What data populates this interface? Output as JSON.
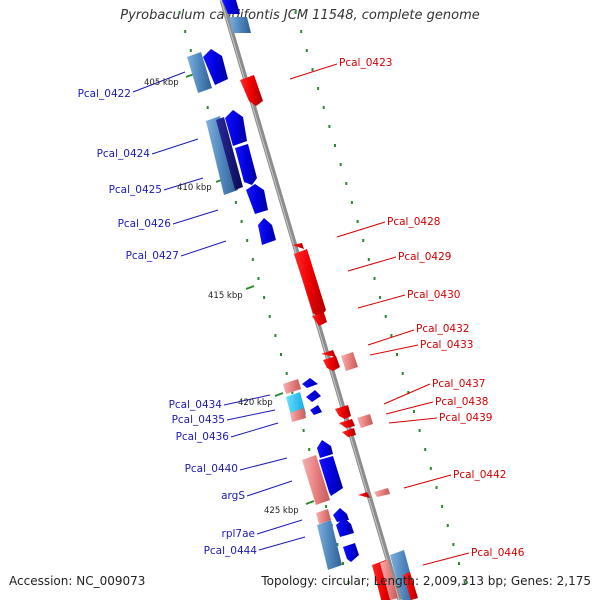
{
  "title": "Pyrobaculum calidifontis JCM 11548, complete genome",
  "footer": {
    "accession": "Accession: NC_009073",
    "summary": "Topology: circular; Length: 2,009,313 bp; Genes: 2,175"
  },
  "colors": {
    "forward_gene": "#0000ee",
    "reverse_gene": "#ee0000",
    "forward_label": "#1a1ab4",
    "reverse_label": "#d40000",
    "tick": "#2b8a2b",
    "backbone": "#8c8c8c"
  },
  "scale_labels": [
    "405 kbp",
    "410 kbp",
    "415 kbp",
    "420 kbp",
    "425 kbp"
  ],
  "gene_labels": {
    "left": [
      "Pcal_0422",
      "Pcal_0424",
      "Pcal_0425",
      "Pcal_0426",
      "Pcal_0427",
      "Pcal_0434",
      "Pcal_0435",
      "Pcal_0436",
      "Pcal_0440",
      "argS",
      "rpl7ae",
      "Pcal_0444"
    ],
    "right": [
      "Pcal_0423",
      "Pcal_0428",
      "Pcal_0429",
      "Pcal_0430",
      "Pcal_0432",
      "Pcal_0433",
      "Pcal_0437",
      "Pcal_0438",
      "Pcal_0439",
      "Pcal_0442",
      "Pcal_0446"
    ]
  }
}
